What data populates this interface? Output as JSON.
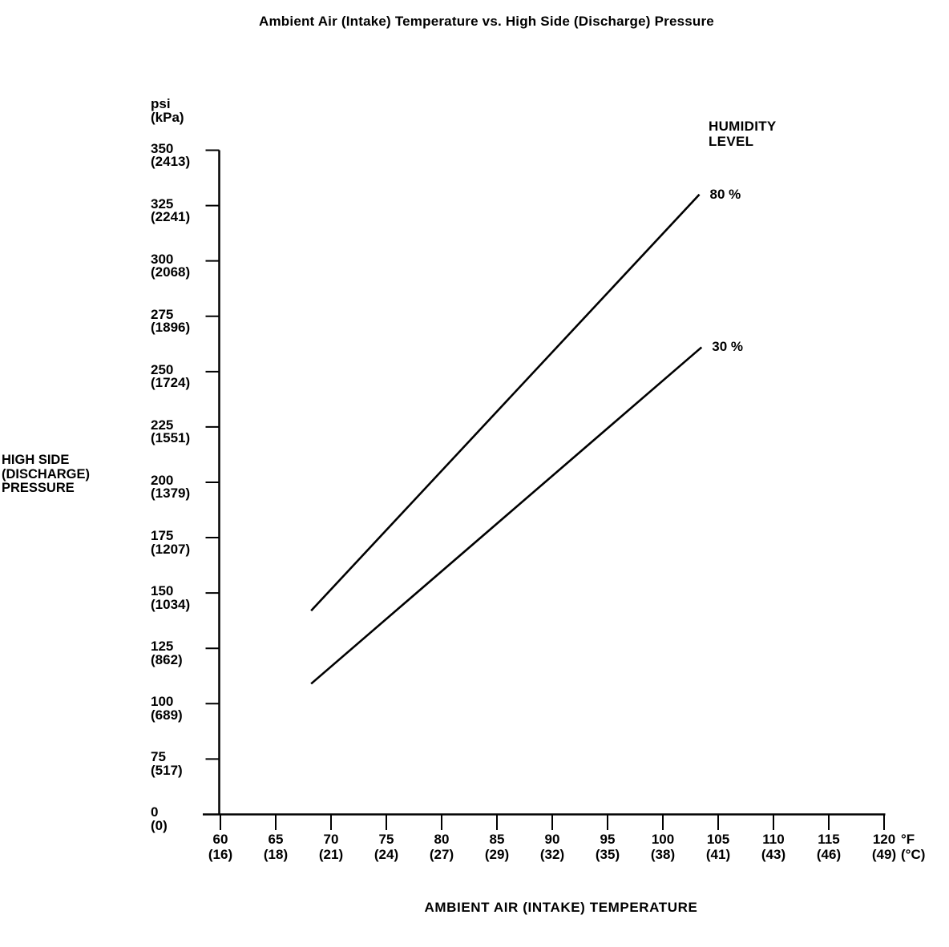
{
  "title": "Ambient Air (Intake) Temperature vs. High Side (Discharge) Pressure",
  "colors": {
    "ink": "#000000",
    "background": "#ffffff"
  },
  "chart_data": {
    "type": "line",
    "title": "Ambient Air (Intake) Temperature vs. High Side (Discharge) Pressure",
    "xlabel": "AMBIENT AIR (INTAKE) TEMPERATURE",
    "ylabel": "HIGH SIDE (DISCHARGE) PRESSURE",
    "ylabel_lines": [
      "HIGH SIDE",
      "(DISCHARGE)",
      "PRESSURE"
    ],
    "y_unit_lines": [
      "psi",
      "(kPa)"
    ],
    "x_unit_lines": [
      "°F",
      "(°C)"
    ],
    "legend_title_lines": [
      "HUMIDITY",
      "LEVEL"
    ],
    "grid": false,
    "legend_position": "top-right",
    "x_axis": {
      "unit_primary": "°F",
      "unit_secondary": "°C",
      "range_f": [
        60,
        120
      ],
      "tick_step_f": 5,
      "ticks": [
        {
          "label": "60",
          "sub": "(16)",
          "value": 60
        },
        {
          "label": "65",
          "sub": "(18)",
          "value": 65
        },
        {
          "label": "70",
          "sub": "(21)",
          "value": 70
        },
        {
          "label": "75",
          "sub": "(24)",
          "value": 75
        },
        {
          "label": "80",
          "sub": "(27)",
          "value": 80
        },
        {
          "label": "85",
          "sub": "(29)",
          "value": 85
        },
        {
          "label": "90",
          "sub": "(32)",
          "value": 90
        },
        {
          "label": "95",
          "sub": "(35)",
          "value": 95
        },
        {
          "label": "100",
          "sub": "(38)",
          "value": 100
        },
        {
          "label": "105",
          "sub": "(41)",
          "value": 105
        },
        {
          "label": "110",
          "sub": "(43)",
          "value": 110
        },
        {
          "label": "115",
          "sub": "(46)",
          "value": 115
        },
        {
          "label": "120",
          "sub": "(49)",
          "value": 120
        }
      ]
    },
    "y_axis": {
      "unit_primary": "psi",
      "unit_secondary": "kPa",
      "range_psi": [
        0,
        350
      ],
      "tick_step_psi": 25,
      "ticks": [
        {
          "label": "350",
          "sub": "(2413)",
          "value": 350
        },
        {
          "label": "325",
          "sub": "(2241)",
          "value": 325
        },
        {
          "label": "300",
          "sub": "(2068)",
          "value": 300
        },
        {
          "label": "275",
          "sub": "(1896)",
          "value": 275
        },
        {
          "label": "250",
          "sub": "(1724)",
          "value": 250
        },
        {
          "label": "225",
          "sub": "(1551)",
          "value": 225
        },
        {
          "label": "200",
          "sub": "(1379)",
          "value": 200
        },
        {
          "label": "175",
          "sub": "(1207)",
          "value": 175
        },
        {
          "label": "150",
          "sub": "(1034)",
          "value": 150
        },
        {
          "label": "125",
          "sub": "(862)",
          "value": 125
        },
        {
          "label": "100",
          "sub": "(689)",
          "value": 100
        },
        {
          "label": "75",
          "sub": "(517)",
          "value": 75
        },
        {
          "label": "0",
          "sub": "(0)",
          "value": 0
        }
      ]
    },
    "series": [
      {
        "name": "80 %",
        "points": [
          [
            68.2,
            142
          ],
          [
            103.3,
            330
          ]
        ]
      },
      {
        "name": "30 %",
        "points": [
          [
            68.2,
            109
          ],
          [
            103.5,
            261
          ]
        ]
      }
    ]
  }
}
